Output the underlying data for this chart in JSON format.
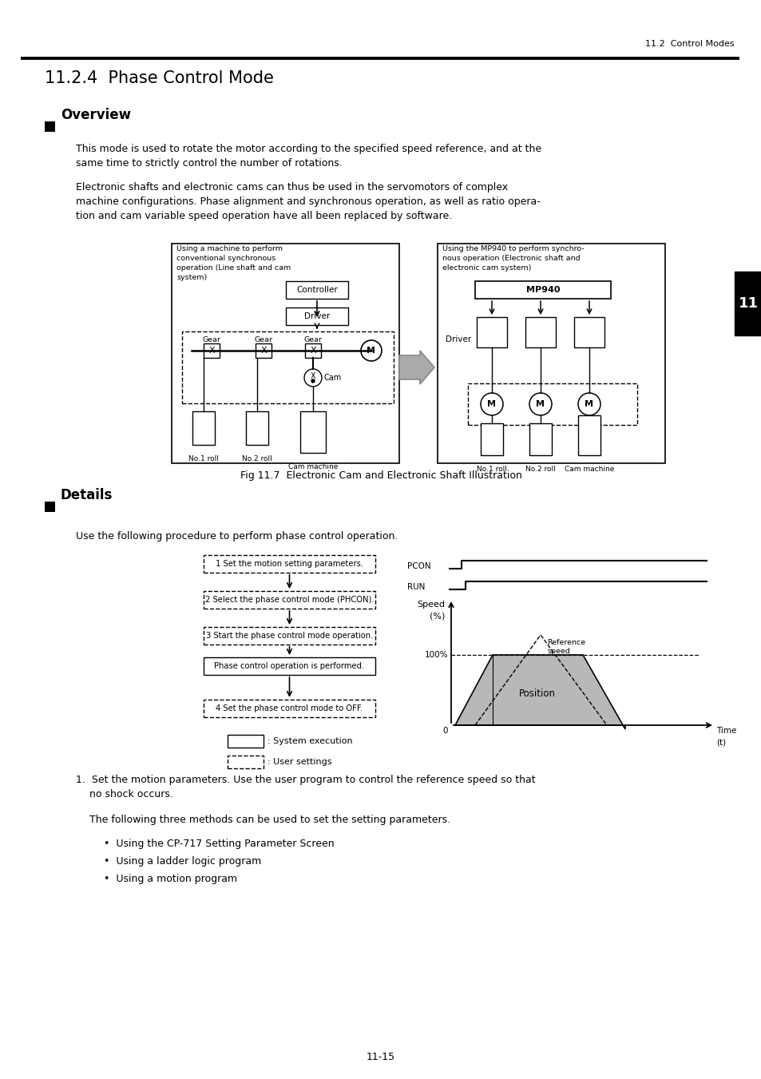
{
  "page_header": "11.2  Control Modes",
  "section_title": "11.2.4  Phase Control Mode",
  "overview_title": "Overview",
  "overview_para1": "This mode is used to rotate the motor according to the specified speed reference, and at the\nsame time to strictly control the number of rotations.",
  "overview_para2": "Electronic shafts and electronic cams can thus be used in the servomotors of complex\nmachine configurations. Phase alignment and synchronous operation, as well as ratio opera-\ntion and cam variable speed operation have all been replaced by software.",
  "fig_caption": "Fig 11.7  Electronic Cam and Electronic Shaft Illustration",
  "details_title": "Details",
  "details_intro": "Use the following procedure to perform phase control operation.",
  "flow_steps": [
    "1 Set the motion setting parameters.",
    "2 Select the phase control mode (PHCON).",
    "3 Start the phase control mode operation.",
    "Phase control operation is performed.",
    "4 Set the phase control mode to OFF."
  ],
  "legend_solid": ": System execution",
  "legend_dash": ": User settings",
  "page_number": "11-15",
  "background_color": "#ffffff",
  "diagram_gray": "#b8b8b8"
}
